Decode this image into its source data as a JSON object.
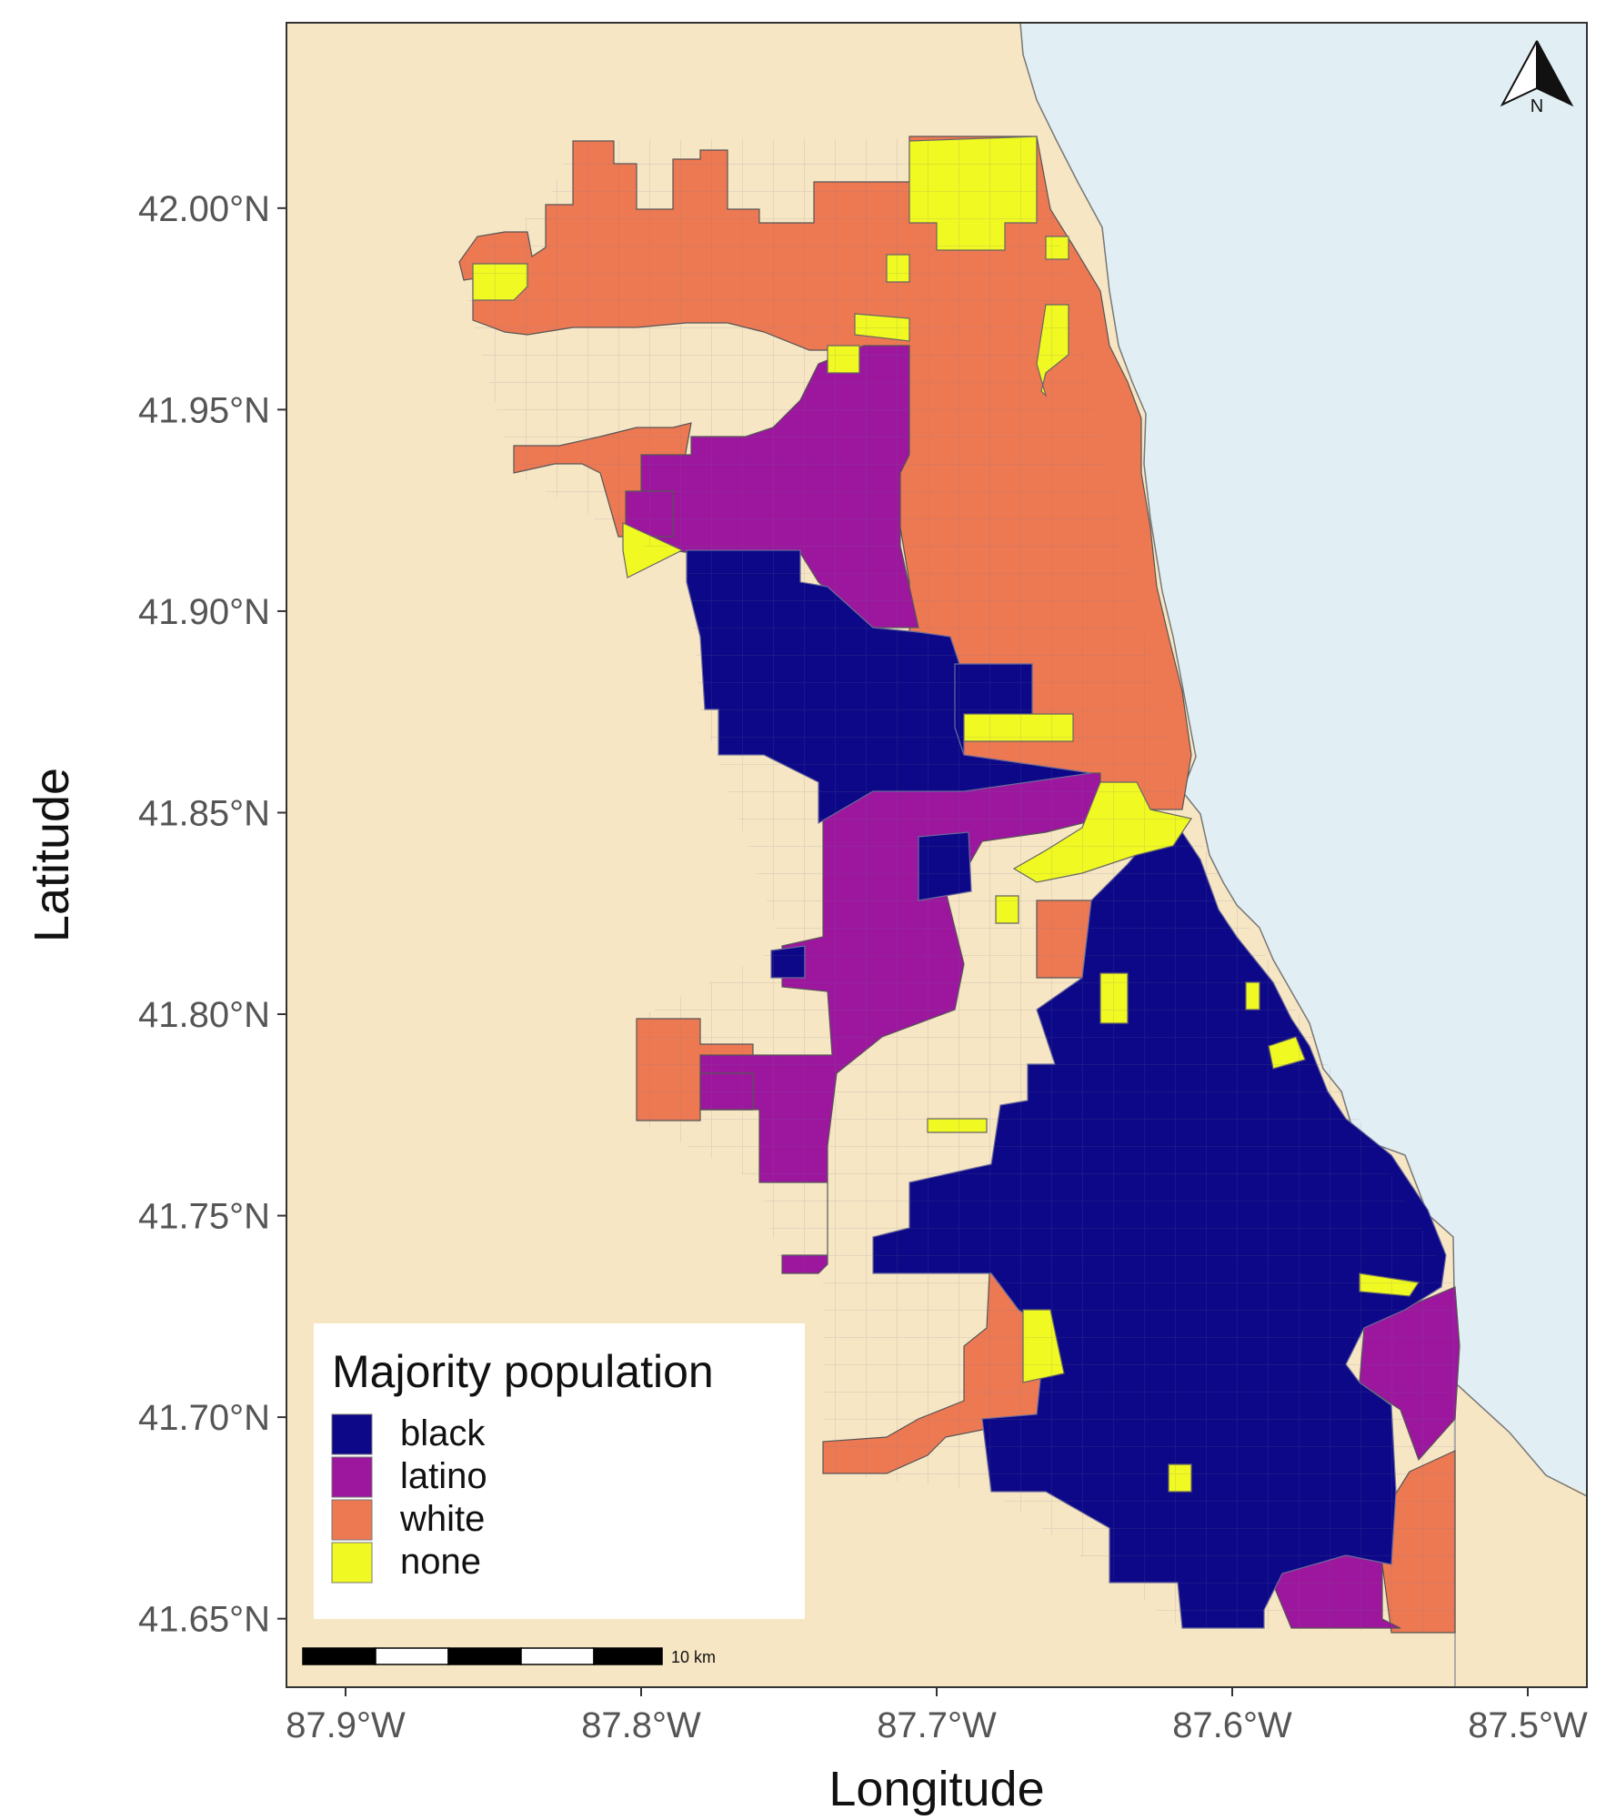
{
  "map": {
    "type": "choropleth",
    "axes": {
      "x_title": "Longitude",
      "y_title": "Latitude",
      "x_range": [
        -87.92,
        -87.48
      ],
      "y_range": [
        41.633,
        42.046
      ],
      "x_ticks": [
        {
          "value": -87.9,
          "label": "87.9°W"
        },
        {
          "value": -87.8,
          "label": "87.8°W"
        },
        {
          "value": -87.7,
          "label": "87.7°W"
        },
        {
          "value": -87.6,
          "label": "87.6°W"
        },
        {
          "value": -87.5,
          "label": "87.5°W"
        }
      ],
      "y_ticks": [
        {
          "value": 42.0,
          "label": "42.00°N"
        },
        {
          "value": 41.95,
          "label": "41.95°N"
        },
        {
          "value": 41.9,
          "label": "41.90°N"
        },
        {
          "value": 41.85,
          "label": "41.85°N"
        },
        {
          "value": 41.8,
          "label": "41.80°N"
        },
        {
          "value": 41.75,
          "label": "41.75°N"
        },
        {
          "value": 41.7,
          "label": "41.70°N"
        },
        {
          "value": 41.65,
          "label": "41.65°N"
        }
      ]
    },
    "legend": {
      "title": "Majority population",
      "position": "bottom-left",
      "items": [
        {
          "label": "black",
          "color": "#0d0887"
        },
        {
          "label": "latino",
          "color": "#9c179e"
        },
        {
          "label": "white",
          "color": "#ed7953"
        },
        {
          "label": "none",
          "color": "#f0f921"
        }
      ]
    },
    "scale_bar": {
      "label": "10 km"
    },
    "north_arrow": {
      "label": "N"
    },
    "colors": {
      "land": "#f7e6c4",
      "water": "#e1eff4",
      "tract_border": "#666666",
      "black": "#0d0887",
      "latino": "#9c179e",
      "white": "#ed7953",
      "none": "#f0f921"
    }
  }
}
